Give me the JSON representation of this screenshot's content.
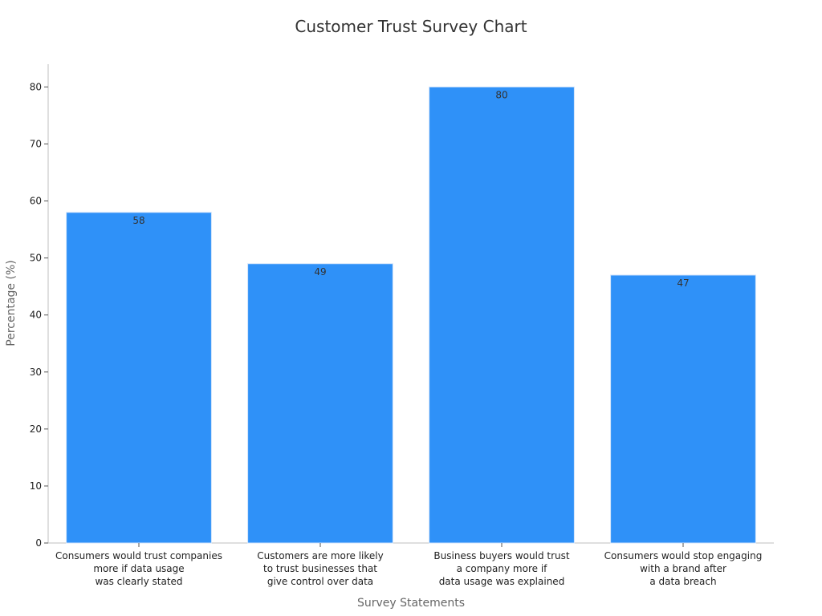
{
  "chart_data": {
    "type": "bar",
    "title": "Customer Trust Survey Chart",
    "xlabel": "Survey Statements",
    "ylabel": "Percentage (%)",
    "categories": [
      [
        "Consumers would trust companies",
        "more if data usage",
        "was clearly stated"
      ],
      [
        "Customers are more likely",
        "to trust businesses that",
        "give control over data"
      ],
      [
        "Business buyers would trust",
        "a company more if",
        "data usage was explained"
      ],
      [
        "Consumers would stop engaging",
        "with a brand after",
        "a data breach"
      ]
    ],
    "values": [
      58,
      49,
      80,
      47
    ],
    "ylim": [
      0,
      84
    ],
    "yticks": [
      0,
      10,
      20,
      30,
      40,
      50,
      60,
      70,
      80
    ],
    "grid": false,
    "legend": "none",
    "bar_color": "#2f91f8"
  }
}
